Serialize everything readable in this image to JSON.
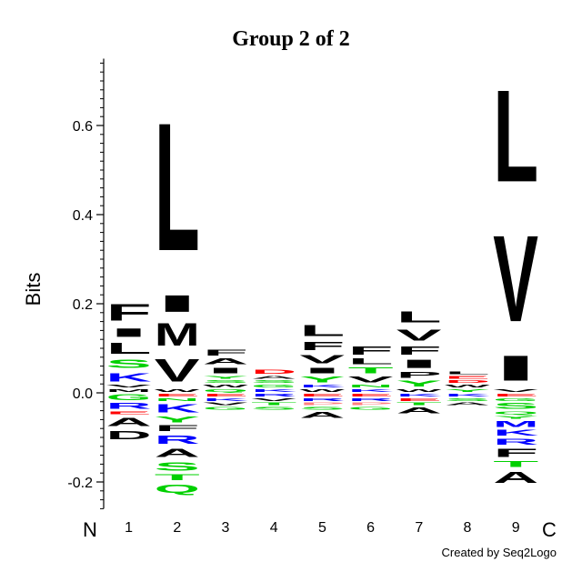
{
  "chart_data": {
    "type": "sequence_logo",
    "title": "Group 2 of 2",
    "ylabel": "Bits",
    "ylim": [
      -0.26,
      0.75
    ],
    "yticks": [
      -0.2,
      0.0,
      0.2,
      0.4,
      0.6
    ],
    "ytick_labels": [
      "-0.2",
      "0.0",
      "0.2",
      "0.4",
      "0.6"
    ],
    "n_terminal_label": "N",
    "c_terminal_label": "C",
    "credit": "Created by Seq2Logo",
    "colors": {
      "hydrophobic": "#000000",
      "polar": "#00d000",
      "basic": "#0000ff",
      "acidic": "#ff0000",
      "other": "#ff8080"
    },
    "positions": [
      {
        "label": "1",
        "positive": [
          {
            "letter": "M",
            "value": 0.01,
            "color": "#000000"
          },
          {
            "letter": "V",
            "value": 0.01,
            "color": "#000000"
          },
          {
            "letter": "K",
            "value": 0.03,
            "color": "#0000ff"
          },
          {
            "letter": "S",
            "value": 0.03,
            "color": "#00d000"
          },
          {
            "letter": "L",
            "value": 0.04,
            "color": "#000000"
          },
          {
            "letter": "I",
            "value": 0.03,
            "color": "#000000"
          },
          {
            "letter": "F",
            "value": 0.06,
            "color": "#000000"
          }
        ],
        "negative": [
          {
            "letter": "G",
            "value": 0.02,
            "color": "#00d000"
          },
          {
            "letter": "R",
            "value": 0.02,
            "color": "#0000ff"
          },
          {
            "letter": "E",
            "value": 0.01,
            "color": "#ff0000"
          },
          {
            "letter": "A",
            "value": 0.03,
            "color": "#000000"
          },
          {
            "letter": "D",
            "value": 0.03,
            "color": "#000000"
          }
        ]
      },
      {
        "label": "2",
        "positive": [
          {
            "letter": "W",
            "value": 0.01,
            "color": "#000000"
          },
          {
            "letter": "V",
            "value": 0.08,
            "color": "#000000"
          },
          {
            "letter": "M",
            "value": 0.08,
            "color": "#000000"
          },
          {
            "letter": "I",
            "value": 0.06,
            "color": "#000000"
          },
          {
            "letter": "L",
            "value": 0.46,
            "color": "#000000"
          }
        ],
        "negative": [
          {
            "letter": "E",
            "value": 0.01,
            "color": "#ff0000"
          },
          {
            "letter": "N",
            "value": 0.01,
            "color": "#00d000"
          },
          {
            "letter": "K",
            "value": 0.03,
            "color": "#0000ff"
          },
          {
            "letter": "Y",
            "value": 0.02,
            "color": "#00d000"
          },
          {
            "letter": "F",
            "value": 0.02,
            "color": "#000000"
          },
          {
            "letter": "R",
            "value": 0.03,
            "color": "#0000ff"
          },
          {
            "letter": "A",
            "value": 0.03,
            "color": "#000000"
          },
          {
            "letter": "S",
            "value": 0.03,
            "color": "#00d000"
          },
          {
            "letter": "T",
            "value": 0.02,
            "color": "#00d000"
          },
          {
            "letter": "Q",
            "value": 0.03,
            "color": "#00d000"
          }
        ]
      },
      {
        "label": "3",
        "positive": [
          {
            "letter": "Q",
            "value": 0.01,
            "color": "#00d000"
          },
          {
            "letter": "W",
            "value": 0.01,
            "color": "#000000"
          },
          {
            "letter": "S",
            "value": 0.01,
            "color": "#00d000"
          },
          {
            "letter": "Y",
            "value": 0.01,
            "color": "#00d000"
          },
          {
            "letter": "I",
            "value": 0.02,
            "color": "#000000"
          },
          {
            "letter": "A",
            "value": 0.02,
            "color": "#000000"
          },
          {
            "letter": "F",
            "value": 0.02,
            "color": "#000000"
          }
        ],
        "negative": [
          {
            "letter": "E",
            "value": 0.01,
            "color": "#ff0000"
          },
          {
            "letter": "K",
            "value": 0.01,
            "color": "#0000ff"
          },
          {
            "letter": "V",
            "value": 0.01,
            "color": "#000000"
          },
          {
            "letter": "G",
            "value": 0.01,
            "color": "#00d000"
          }
        ]
      },
      {
        "label": "4",
        "positive": [
          {
            "letter": "K",
            "value": 0.01,
            "color": "#0000ff"
          },
          {
            "letter": "G",
            "value": 0.01,
            "color": "#00d000"
          },
          {
            "letter": "S",
            "value": 0.01,
            "color": "#00d000"
          },
          {
            "letter": "A",
            "value": 0.01,
            "color": "#000000"
          },
          {
            "letter": "D",
            "value": 0.015,
            "color": "#ff0000"
          }
        ],
        "negative": [
          {
            "letter": "R",
            "value": 0.01,
            "color": "#0000ff"
          },
          {
            "letter": "V",
            "value": 0.01,
            "color": "#000000"
          },
          {
            "letter": "T",
            "value": 0.01,
            "color": "#00d000"
          },
          {
            "letter": "S",
            "value": 0.01,
            "color": "#00d000"
          }
        ]
      },
      {
        "label": "5",
        "positive": [
          {
            "letter": "W",
            "value": 0.01,
            "color": "#000000"
          },
          {
            "letter": "K",
            "value": 0.01,
            "color": "#0000ff"
          },
          {
            "letter": "Y",
            "value": 0.02,
            "color": "#00d000"
          },
          {
            "letter": "I",
            "value": 0.02,
            "color": "#000000"
          },
          {
            "letter": "V",
            "value": 0.03,
            "color": "#000000"
          },
          {
            "letter": "F",
            "value": 0.03,
            "color": "#000000"
          },
          {
            "letter": "L",
            "value": 0.04,
            "color": "#000000"
          }
        ],
        "negative": [
          {
            "letter": "E",
            "value": 0.01,
            "color": "#ff0000"
          },
          {
            "letter": "R",
            "value": 0.01,
            "color": "#0000ff"
          },
          {
            "letter": "P",
            "value": 0.01,
            "color": "#ff8080"
          },
          {
            "letter": "S",
            "value": 0.01,
            "color": "#00d000"
          },
          {
            "letter": "A",
            "value": 0.02,
            "color": "#000000"
          }
        ]
      },
      {
        "label": "6",
        "positive": [
          {
            "letter": "K",
            "value": 0.01,
            "color": "#0000ff"
          },
          {
            "letter": "N",
            "value": 0.01,
            "color": "#00d000"
          },
          {
            "letter": "V",
            "value": 0.02,
            "color": "#000000"
          },
          {
            "letter": "T",
            "value": 0.02,
            "color": "#00d000"
          },
          {
            "letter": "L",
            "value": 0.02,
            "color": "#000000"
          },
          {
            "letter": "F",
            "value": 0.03,
            "color": "#000000"
          }
        ],
        "negative": [
          {
            "letter": "E",
            "value": 0.01,
            "color": "#ff0000"
          },
          {
            "letter": "R",
            "value": 0.01,
            "color": "#0000ff"
          },
          {
            "letter": "P",
            "value": 0.01,
            "color": "#ff8080"
          },
          {
            "letter": "G",
            "value": 0.01,
            "color": "#00d000"
          }
        ]
      },
      {
        "label": "7",
        "positive": [
          {
            "letter": "W",
            "value": 0.01,
            "color": "#000000"
          },
          {
            "letter": "Y",
            "value": 0.02,
            "color": "#00d000"
          },
          {
            "letter": "P",
            "value": 0.02,
            "color": "#000000"
          },
          {
            "letter": "I",
            "value": 0.03,
            "color": "#000000"
          },
          {
            "letter": "F",
            "value": 0.03,
            "color": "#000000"
          },
          {
            "letter": "V",
            "value": 0.04,
            "color": "#000000"
          },
          {
            "letter": "L",
            "value": 0.04,
            "color": "#000000"
          }
        ],
        "negative": [
          {
            "letter": "K",
            "value": 0.01,
            "color": "#0000ff"
          },
          {
            "letter": "E",
            "value": 0.01,
            "color": "#ff0000"
          },
          {
            "letter": "T",
            "value": 0.01,
            "color": "#00d000"
          },
          {
            "letter": "A",
            "value": 0.02,
            "color": "#000000"
          }
        ]
      },
      {
        "label": "8",
        "positive": [
          {
            "letter": "Y",
            "value": 0.01,
            "color": "#00d000"
          },
          {
            "letter": "W",
            "value": 0.01,
            "color": "#000000"
          },
          {
            "letter": "D",
            "value": 0.01,
            "color": "#ff0000"
          },
          {
            "letter": "E",
            "value": 0.01,
            "color": "#ff0000"
          },
          {
            "letter": "L",
            "value": 0.01,
            "color": "#000000"
          }
        ],
        "negative": [
          {
            "letter": "K",
            "value": 0.01,
            "color": "#0000ff"
          },
          {
            "letter": "S",
            "value": 0.01,
            "color": "#00d000"
          },
          {
            "letter": "A",
            "value": 0.01,
            "color": "#000000"
          }
        ]
      },
      {
        "label": "9",
        "positive": [
          {
            "letter": "V",
            "value": 0.01,
            "color": "#000000"
          },
          {
            "letter": "I",
            "value": 0.09,
            "color": "#000000"
          },
          {
            "letter": "V",
            "value": 0.31,
            "color": "#000000"
          },
          {
            "letter": "L",
            "value": 0.33,
            "color": "#000000"
          }
        ],
        "negative": [
          {
            "letter": "E",
            "value": 0.01,
            "color": "#ff0000"
          },
          {
            "letter": "G",
            "value": 0.01,
            "color": "#00d000"
          },
          {
            "letter": "S",
            "value": 0.02,
            "color": "#00d000"
          },
          {
            "letter": "Q",
            "value": 0.01,
            "color": "#00d000"
          },
          {
            "letter": "Y",
            "value": 0.01,
            "color": "#00d000"
          },
          {
            "letter": "M",
            "value": 0.02,
            "color": "#0000ff"
          },
          {
            "letter": "K",
            "value": 0.02,
            "color": "#0000ff"
          },
          {
            "letter": "R",
            "value": 0.02,
            "color": "#0000ff"
          },
          {
            "letter": "F",
            "value": 0.03,
            "color": "#000000"
          },
          {
            "letter": "T",
            "value": 0.02,
            "color": "#00d000"
          },
          {
            "letter": "A",
            "value": 0.04,
            "color": "#000000"
          }
        ]
      }
    ]
  }
}
